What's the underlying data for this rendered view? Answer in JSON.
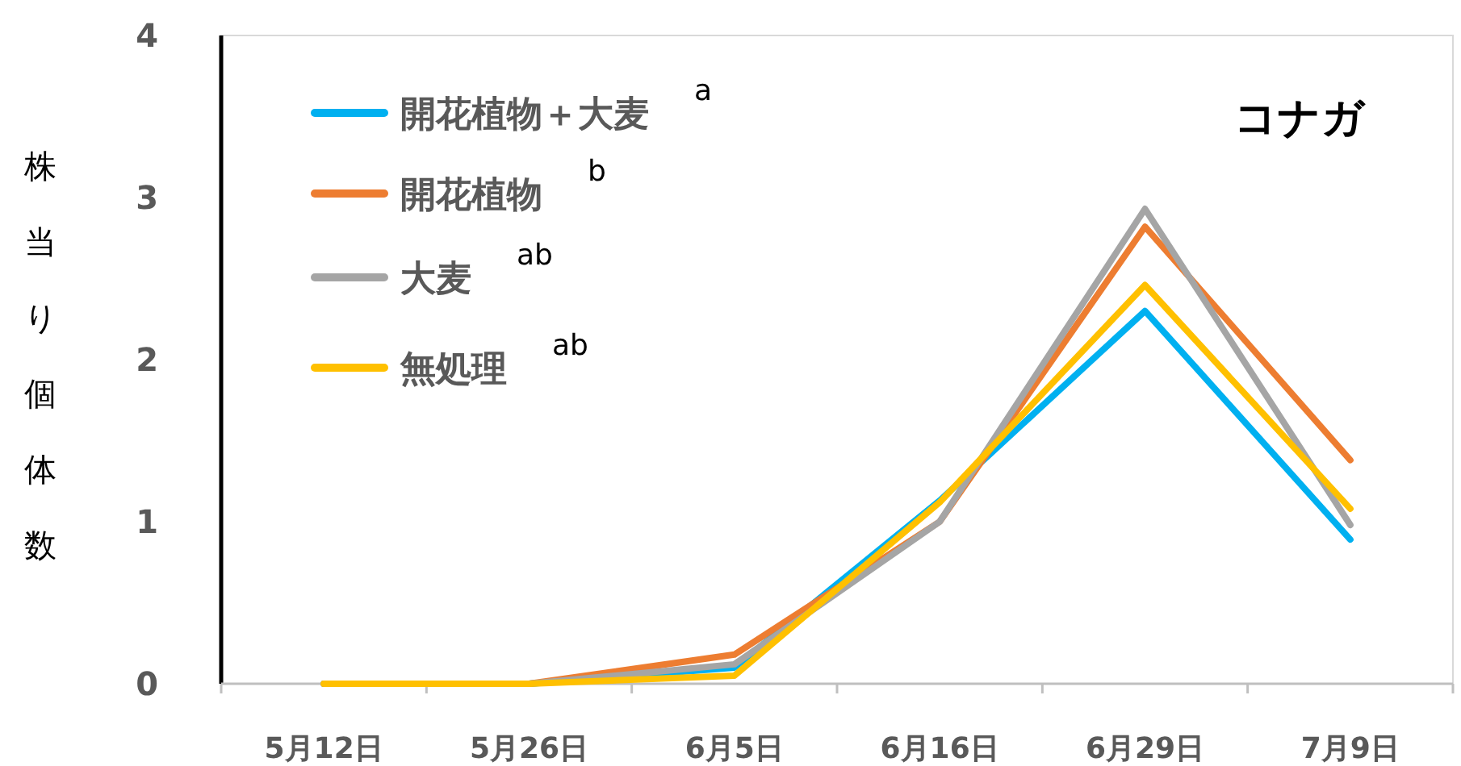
{
  "chart_data": {
    "type": "line",
    "title": "コナガ",
    "ylabel": "株当り個体数",
    "categories": [
      "5月12日",
      "5月26日",
      "6月5日",
      "6月16日",
      "6月29日",
      "7月9日"
    ],
    "series": [
      {
        "name": "開花植物＋大麦",
        "color": "#00b0f0",
        "values": [
          0,
          0,
          0.1,
          1.13,
          2.3,
          0.89
        ]
      },
      {
        "name": "開花植物",
        "color": "#ed7d31",
        "values": [
          0,
          0,
          0.18,
          1.0,
          2.82,
          1.38
        ]
      },
      {
        "name": "大麦",
        "color": "#a5a5a5",
        "values": [
          0,
          0,
          0.12,
          1.0,
          2.93,
          0.98
        ]
      },
      {
        "name": "無処理",
        "color": "#ffc000",
        "values": [
          0,
          0,
          0.05,
          1.12,
          2.46,
          1.08
        ]
      }
    ],
    "annotations": [
      "a",
      "b",
      "ab",
      "ab"
    ],
    "ylim": [
      0,
      4
    ],
    "yticks": [
      0,
      1,
      2,
      3,
      4
    ],
    "grid": false,
    "legend": "top left",
    "marker": "none",
    "line_style": "solid"
  }
}
